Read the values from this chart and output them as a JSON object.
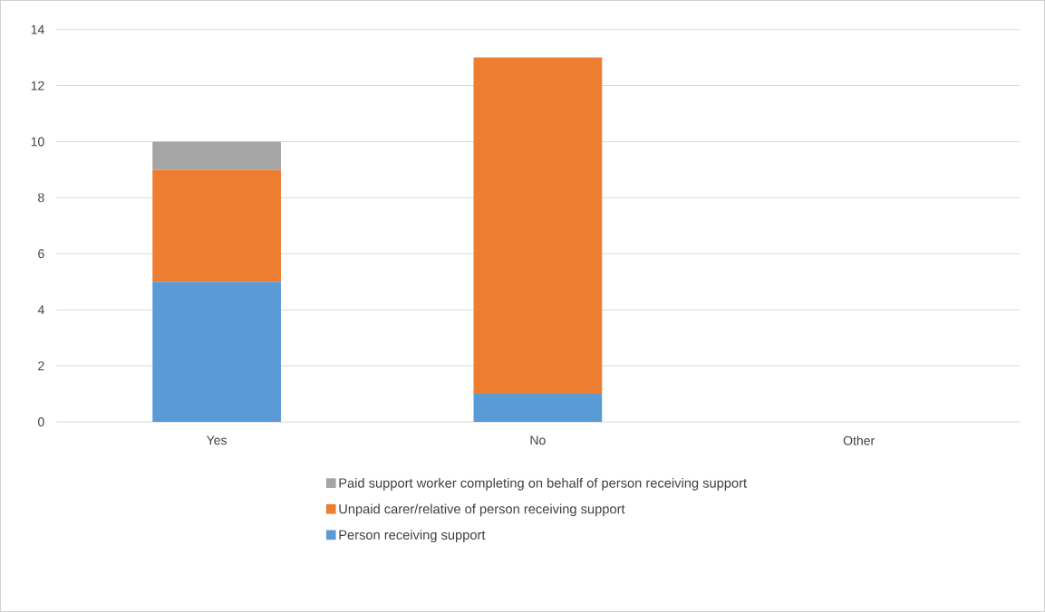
{
  "chart_data": {
    "type": "bar",
    "stacked": true,
    "categories": [
      "Yes",
      "No",
      "Other"
    ],
    "series": [
      {
        "name": "Person receiving support",
        "color": "#5b9bd5",
        "values": [
          5,
          1,
          0
        ]
      },
      {
        "name": "Unpaid carer/relative of person receiving support",
        "color": "#ed7d31",
        "values": [
          4,
          12,
          0
        ]
      },
      {
        "name": "Paid support worker completing on behalf of person receiving support",
        "color": "#a5a5a5",
        "values": [
          1,
          0,
          0
        ]
      }
    ],
    "ylim": [
      0,
      14
    ],
    "yticks": [
      0,
      2,
      4,
      6,
      8,
      10,
      12,
      14
    ],
    "grid": "y",
    "legend": "bottom"
  }
}
